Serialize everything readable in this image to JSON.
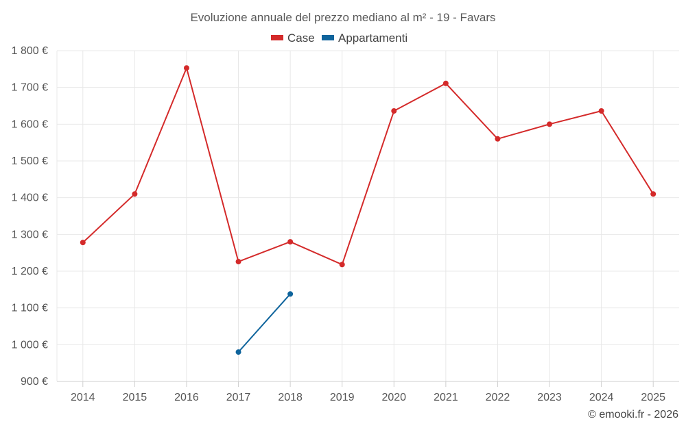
{
  "chart_data": {
    "type": "line",
    "title": "Evoluzione annuale del prezzo mediano al m² - 19 - Favars",
    "categories": [
      "2014",
      "2015",
      "2016",
      "2017",
      "2018",
      "2019",
      "2020",
      "2021",
      "2022",
      "2023",
      "2024",
      "2025"
    ],
    "series": [
      {
        "name": "Case",
        "color": "#d42a2a",
        "values": [
          1278,
          1410,
          1753,
          1226,
          1280,
          1218,
          1636,
          1711,
          1560,
          1600,
          1636,
          1410
        ]
      },
      {
        "name": "Appartamenti",
        "color": "#0f649c",
        "values": [
          null,
          null,
          null,
          980,
          1138,
          null,
          null,
          null,
          null,
          null,
          null,
          null
        ]
      }
    ],
    "ylim": [
      900,
      1800
    ],
    "yticks": [
      {
        "value": 900,
        "label": "900 €"
      },
      {
        "value": 1000,
        "label": "1 000 €"
      },
      {
        "value": 1100,
        "label": "1 100 €"
      },
      {
        "value": 1200,
        "label": "1 200 €"
      },
      {
        "value": 1300,
        "label": "1 300 €"
      },
      {
        "value": 1400,
        "label": "1 400 €"
      },
      {
        "value": 1500,
        "label": "1 500 €"
      },
      {
        "value": 1600,
        "label": "1 600 €"
      },
      {
        "value": 1700,
        "label": "1 700 €"
      },
      {
        "value": 1800,
        "label": "1 800 €"
      }
    ],
    "grid": true,
    "legend_position": "top-center",
    "xlabel": "",
    "ylabel": ""
  },
  "credit": "© emooki.fr - 2026"
}
